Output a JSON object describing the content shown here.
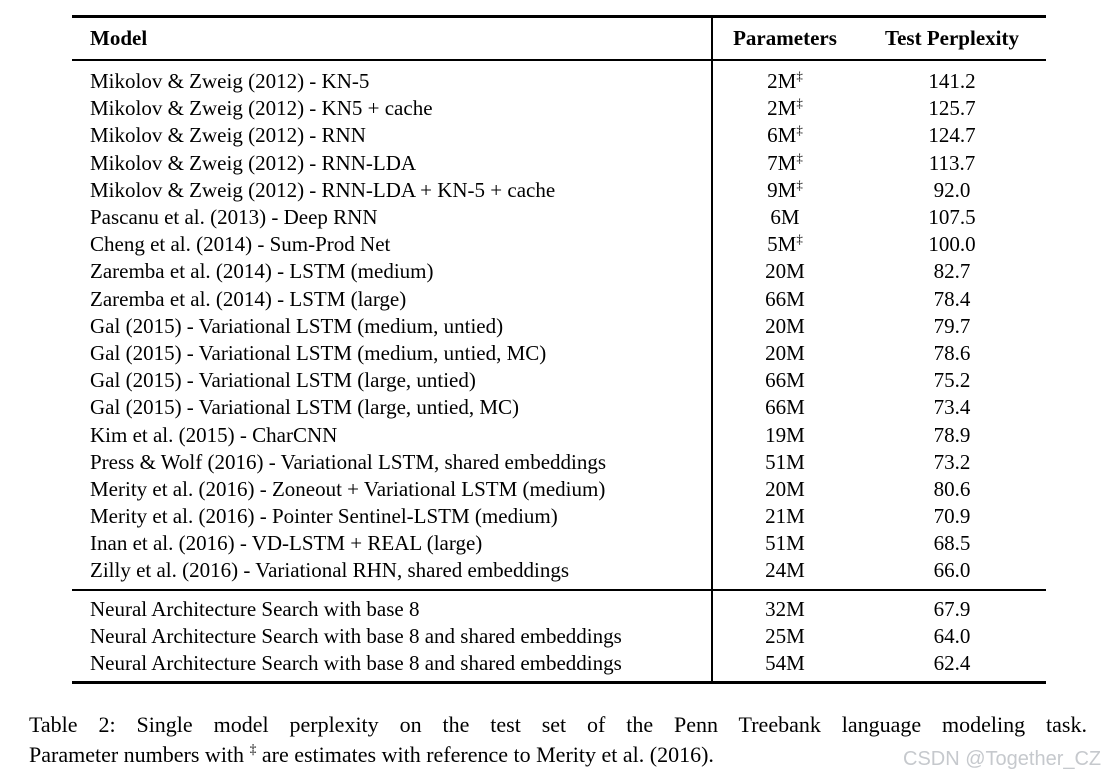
{
  "table": {
    "dagger_symbol": "‡",
    "columns": {
      "model": "Model",
      "parameters": "Parameters",
      "perplexity": "Test Perplexity"
    },
    "sections": [
      {
        "rows": [
          {
            "model": "Mikolov & Zweig (2012) - KN-5",
            "params": "2M",
            "dagger": true,
            "perplexity": "141.2"
          },
          {
            "model": "Mikolov & Zweig (2012) - KN5 + cache",
            "params": "2M",
            "dagger": true,
            "perplexity": "125.7"
          },
          {
            "model": "Mikolov & Zweig (2012) - RNN",
            "params": "6M",
            "dagger": true,
            "perplexity": "124.7"
          },
          {
            "model": "Mikolov & Zweig (2012) - RNN-LDA",
            "params": "7M",
            "dagger": true,
            "perplexity": "113.7"
          },
          {
            "model": "Mikolov & Zweig (2012) - RNN-LDA + KN-5 + cache",
            "params": "9M",
            "dagger": true,
            "perplexity": "92.0"
          },
          {
            "model": "Pascanu et al. (2013) - Deep RNN",
            "params": "6M",
            "dagger": false,
            "perplexity": "107.5"
          },
          {
            "model": "Cheng et al. (2014) - Sum-Prod Net",
            "params": "5M",
            "dagger": true,
            "perplexity": "100.0"
          },
          {
            "model": "Zaremba et al. (2014) - LSTM (medium)",
            "params": "20M",
            "dagger": false,
            "perplexity": "82.7"
          },
          {
            "model": "Zaremba et al. (2014) - LSTM (large)",
            "params": "66M",
            "dagger": false,
            "perplexity": "78.4"
          },
          {
            "model": "Gal (2015) - Variational LSTM (medium, untied)",
            "params": "20M",
            "dagger": false,
            "perplexity": "79.7"
          },
          {
            "model": "Gal (2015) - Variational LSTM (medium, untied, MC)",
            "params": "20M",
            "dagger": false,
            "perplexity": "78.6"
          },
          {
            "model": "Gal (2015) - Variational LSTM (large, untied)",
            "params": "66M",
            "dagger": false,
            "perplexity": "75.2"
          },
          {
            "model": "Gal (2015) - Variational LSTM (large, untied, MC)",
            "params": "66M",
            "dagger": false,
            "perplexity": "73.4"
          },
          {
            "model": "Kim et al. (2015) - CharCNN",
            "params": "19M",
            "dagger": false,
            "perplexity": "78.9"
          },
          {
            "model": "Press & Wolf (2016) - Variational LSTM, shared embeddings",
            "params": "51M",
            "dagger": false,
            "perplexity": "73.2"
          },
          {
            "model": "Merity et al. (2016) - Zoneout + Variational LSTM (medium)",
            "params": "20M",
            "dagger": false,
            "perplexity": "80.6"
          },
          {
            "model": "Merity et al. (2016) - Pointer Sentinel-LSTM (medium)",
            "params": "21M",
            "dagger": false,
            "perplexity": "70.9"
          },
          {
            "model": "Inan et al. (2016) - VD-LSTM + REAL (large)",
            "params": "51M",
            "dagger": false,
            "perplexity": "68.5"
          },
          {
            "model": "Zilly et al. (2016) - Variational RHN, shared embeddings",
            "params": "24M",
            "dagger": false,
            "perplexity": "66.0"
          }
        ]
      },
      {
        "rows": [
          {
            "model": "Neural Architecture Search with base 8",
            "params": "32M",
            "dagger": false,
            "perplexity": "67.9"
          },
          {
            "model": "Neural Architecture Search with base 8 and shared embeddings",
            "params": "25M",
            "dagger": false,
            "perplexity": "64.0"
          },
          {
            "model": "Neural Architecture Search with base 8 and shared embeddings",
            "params": "54M",
            "dagger": false,
            "perplexity": "62.4"
          }
        ]
      }
    ]
  },
  "caption": {
    "line1": "Table 2:  Single model perplexity on the test set of the Penn Treebank language modeling task.",
    "line2_prefix": "Parameter numbers with ",
    "line2_dagger": "‡",
    "line2_suffix": " are estimates with reference to Merity et al. (2016)."
  },
  "watermark": "CSDN @Together_CZ"
}
